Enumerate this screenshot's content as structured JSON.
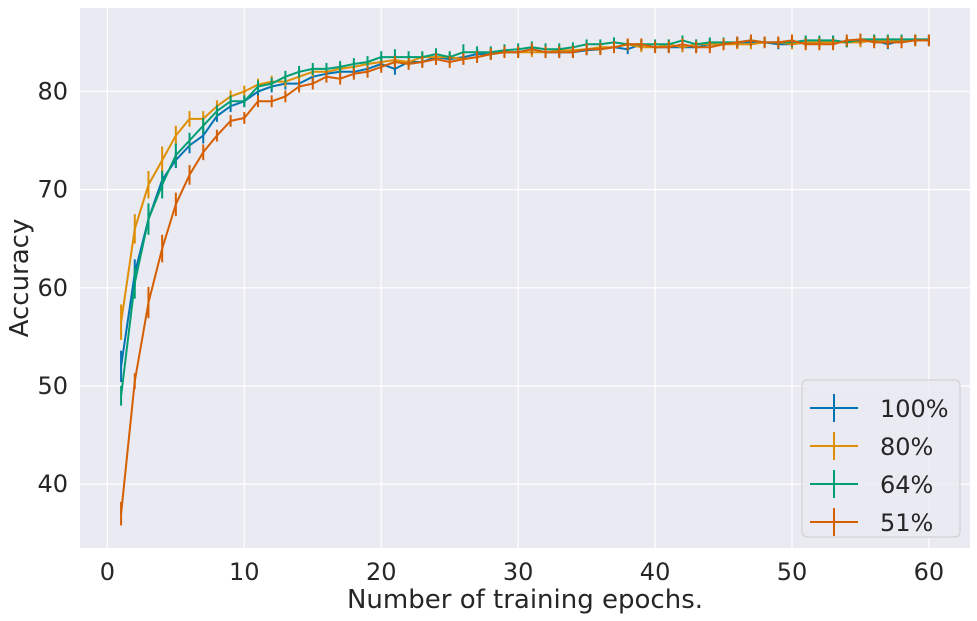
{
  "chart_data": {
    "type": "line",
    "title": "",
    "xlabel": "Number of training epochs.",
    "ylabel": "Accuracy",
    "xlim": [
      -2,
      63
    ],
    "ylim": [
      33.5,
      88.5
    ],
    "xticks": [
      0,
      10,
      20,
      30,
      40,
      50,
      60
    ],
    "yticks": [
      40,
      50,
      60,
      70,
      80
    ],
    "grid": true,
    "legend_position": "bottom-right",
    "error_bars": true,
    "series": [
      {
        "name": "100%",
        "color": "#0173b2",
        "x": [
          1,
          2,
          3,
          4,
          5,
          6,
          7,
          8,
          9,
          10,
          11,
          12,
          13,
          14,
          15,
          16,
          17,
          18,
          19,
          20,
          21,
          22,
          23,
          24,
          25,
          26,
          27,
          28,
          29,
          30,
          31,
          32,
          33,
          34,
          35,
          36,
          37,
          38,
          39,
          40,
          41,
          42,
          43,
          44,
          45,
          46,
          47,
          48,
          49,
          50,
          51,
          52,
          53,
          54,
          55,
          56,
          57,
          58,
          59,
          60
        ],
        "y": [
          52.0,
          61.5,
          67.0,
          71.0,
          73.0,
          74.5,
          75.5,
          77.5,
          78.5,
          79.0,
          80.0,
          80.5,
          80.8,
          80.8,
          81.5,
          81.8,
          82.0,
          82.0,
          82.3,
          82.8,
          82.3,
          83.0,
          83.0,
          83.5,
          83.3,
          83.5,
          83.8,
          83.8,
          84.0,
          84.0,
          84.3,
          84.0,
          84.0,
          84.0,
          84.2,
          84.3,
          84.5,
          84.3,
          84.8,
          84.5,
          84.5,
          84.5,
          84.5,
          84.8,
          84.8,
          85.0,
          85.0,
          85.0,
          84.8,
          84.8,
          85.0,
          85.0,
          85.2,
          85.0,
          85.2,
          85.2,
          84.8,
          85.2,
          85.3,
          85.2
        ],
        "err": [
          1.6,
          1.4,
          1.4,
          1.0,
          0.8,
          0.8,
          0.8,
          0.6,
          0.6,
          0.6,
          0.6,
          0.6,
          0.6,
          0.6,
          0.6,
          0.5,
          0.5,
          0.5,
          0.5,
          0.6,
          0.6,
          0.5,
          0.5,
          0.5,
          0.5,
          0.5,
          0.5,
          0.5,
          0.5,
          0.5,
          0.5,
          0.5,
          0.5,
          0.5,
          0.5,
          0.5,
          0.5,
          0.5,
          0.5,
          0.5,
          0.5,
          0.5,
          0.5,
          0.5,
          0.5,
          0.5,
          0.5,
          0.5,
          0.5,
          0.5,
          0.5,
          0.5,
          0.5,
          0.5,
          0.5,
          0.5,
          0.5,
          0.5,
          0.5,
          0.5
        ]
      },
      {
        "name": "80%",
        "color": "#de8f05",
        "x": [
          1,
          2,
          3,
          4,
          5,
          6,
          7,
          8,
          9,
          10,
          11,
          12,
          13,
          14,
          15,
          16,
          17,
          18,
          19,
          20,
          21,
          22,
          23,
          24,
          25,
          26,
          27,
          28,
          29,
          30,
          31,
          32,
          33,
          34,
          35,
          36,
          37,
          38,
          39,
          40,
          41,
          42,
          43,
          44,
          45,
          46,
          47,
          48,
          49,
          50,
          51,
          52,
          53,
          54,
          55,
          56,
          57,
          58,
          59,
          60
        ],
        "y": [
          56.5,
          66.0,
          70.5,
          73.0,
          75.5,
          77.2,
          77.2,
          78.5,
          79.5,
          80.0,
          80.7,
          81.0,
          81.0,
          81.5,
          82.0,
          82.0,
          82.3,
          82.5,
          82.8,
          83.0,
          83.2,
          83.0,
          83.5,
          83.5,
          83.5,
          83.3,
          83.5,
          83.8,
          84.0,
          84.0,
          84.0,
          84.0,
          84.2,
          84.2,
          84.3,
          84.5,
          84.5,
          84.8,
          84.5,
          84.5,
          84.8,
          84.5,
          84.8,
          84.8,
          84.8,
          84.8,
          84.8,
          85.0,
          85.0,
          84.8,
          85.0,
          85.0,
          85.0,
          85.0,
          85.0,
          85.2,
          85.2,
          85.2,
          85.2,
          85.2
        ],
        "err": [
          1.8,
          1.5,
          1.4,
          1.4,
          1.0,
          0.8,
          0.8,
          0.6,
          0.6,
          0.6,
          0.6,
          0.6,
          0.5,
          0.5,
          0.5,
          0.5,
          0.5,
          0.5,
          0.5,
          0.5,
          0.5,
          0.5,
          0.5,
          0.5,
          0.5,
          0.5,
          0.5,
          0.5,
          0.5,
          0.5,
          0.5,
          0.5,
          0.5,
          0.5,
          0.5,
          0.5,
          0.5,
          0.5,
          0.5,
          0.5,
          0.5,
          0.5,
          0.5,
          0.5,
          0.5,
          0.5,
          0.5,
          0.5,
          0.5,
          0.5,
          0.5,
          0.5,
          0.5,
          0.5,
          0.5,
          0.5,
          0.5,
          0.5,
          0.5,
          0.5
        ]
      },
      {
        "name": "64%",
        "color": "#029e73",
        "x": [
          1,
          2,
          3,
          4,
          5,
          6,
          7,
          8,
          9,
          10,
          11,
          12,
          13,
          14,
          15,
          16,
          17,
          18,
          19,
          20,
          21,
          22,
          23,
          24,
          25,
          26,
          27,
          28,
          29,
          30,
          31,
          32,
          33,
          34,
          35,
          36,
          37,
          38,
          39,
          40,
          41,
          42,
          43,
          44,
          45,
          46,
          47,
          48,
          49,
          50,
          51,
          52,
          53,
          54,
          55,
          56,
          57,
          58,
          59,
          60
        ],
        "y": [
          49.0,
          60.5,
          67.0,
          70.5,
          73.5,
          75.0,
          76.5,
          78.0,
          79.0,
          79.0,
          80.5,
          80.8,
          81.5,
          82.0,
          82.3,
          82.3,
          82.5,
          82.8,
          83.0,
          83.5,
          83.5,
          83.5,
          83.5,
          83.8,
          83.5,
          84.0,
          84.0,
          84.0,
          84.2,
          84.3,
          84.5,
          84.3,
          84.3,
          84.5,
          84.8,
          84.8,
          85.0,
          84.8,
          84.8,
          84.8,
          84.8,
          85.2,
          84.8,
          85.0,
          85.0,
          85.0,
          85.2,
          85.0,
          85.0,
          85.0,
          85.2,
          85.2,
          85.2,
          85.0,
          85.3,
          85.3,
          85.3,
          85.3,
          85.3,
          85.3
        ],
        "err": [
          1.0,
          1.6,
          1.6,
          1.4,
          1.2,
          0.8,
          0.8,
          0.6,
          0.6,
          0.6,
          0.6,
          0.6,
          0.6,
          0.6,
          0.6,
          0.6,
          0.6,
          0.6,
          0.6,
          0.6,
          0.8,
          0.6,
          0.6,
          0.6,
          0.6,
          0.8,
          0.6,
          0.6,
          0.6,
          0.6,
          0.6,
          0.6,
          0.6,
          0.5,
          0.5,
          0.5,
          0.5,
          0.5,
          0.5,
          0.5,
          0.5,
          0.5,
          0.5,
          0.5,
          0.5,
          0.5,
          0.5,
          0.5,
          0.5,
          0.5,
          0.5,
          0.5,
          0.5,
          0.5,
          0.5,
          0.5,
          0.5,
          0.5,
          0.5,
          0.5
        ]
      },
      {
        "name": "51%",
        "color": "#d55e00",
        "x": [
          1,
          2,
          3,
          4,
          5,
          6,
          7,
          8,
          9,
          10,
          11,
          12,
          13,
          14,
          15,
          16,
          17,
          18,
          19,
          20,
          21,
          22,
          23,
          24,
          25,
          26,
          27,
          28,
          29,
          30,
          31,
          32,
          33,
          34,
          35,
          36,
          37,
          38,
          39,
          40,
          41,
          42,
          43,
          44,
          45,
          46,
          47,
          48,
          49,
          50,
          51,
          52,
          53,
          54,
          55,
          56,
          57,
          58,
          59,
          60
        ],
        "y": [
          37.0,
          50.5,
          58.5,
          64.0,
          68.5,
          71.5,
          73.8,
          75.5,
          77.0,
          77.3,
          79.0,
          79.0,
          79.5,
          80.5,
          80.8,
          81.5,
          81.3,
          81.8,
          82.0,
          82.5,
          83.0,
          82.8,
          83.0,
          83.3,
          83.0,
          83.3,
          83.5,
          83.8,
          84.0,
          84.0,
          84.3,
          84.0,
          84.0,
          84.0,
          84.3,
          84.3,
          84.5,
          84.8,
          84.8,
          84.5,
          84.5,
          84.8,
          84.5,
          84.5,
          84.8,
          85.0,
          85.2,
          85.0,
          85.0,
          85.2,
          84.8,
          84.8,
          84.8,
          85.2,
          85.3,
          85.0,
          85.0,
          85.0,
          85.2,
          85.2
        ],
        "err": [
          1.2,
          0.8,
          1.6,
          1.4,
          1.2,
          1.0,
          0.8,
          0.6,
          0.6,
          0.6,
          0.6,
          0.6,
          0.6,
          0.6,
          0.6,
          0.6,
          0.6,
          0.6,
          0.6,
          0.6,
          0.6,
          0.6,
          0.6,
          0.6,
          0.6,
          0.6,
          0.6,
          0.6,
          0.6,
          0.6,
          0.6,
          0.6,
          0.6,
          0.6,
          0.6,
          0.6,
          0.6,
          0.6,
          0.6,
          0.6,
          0.6,
          0.6,
          0.6,
          0.6,
          0.6,
          0.6,
          0.6,
          0.6,
          0.6,
          0.6,
          0.6,
          0.6,
          0.6,
          0.6,
          0.6,
          0.6,
          0.6,
          0.6,
          0.6,
          0.6
        ]
      }
    ]
  }
}
